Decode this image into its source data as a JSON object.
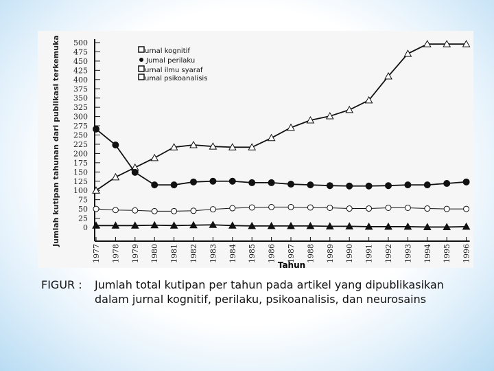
{
  "chart_data": {
    "type": "line",
    "xlabel": "Tahun",
    "ylabel": "Jumlah kutipan tahunan dari publikasi terkemuka",
    "ylim": [
      0,
      500
    ],
    "yticks": [
      0,
      25,
      50,
      75,
      100,
      125,
      150,
      175,
      200,
      225,
      250,
      275,
      300,
      325,
      350,
      375,
      400,
      425,
      450,
      475,
      500
    ],
    "x": [
      1977,
      1978,
      1979,
      1980,
      1981,
      1982,
      1983,
      1984,
      1985,
      1986,
      1987,
      1988,
      1989,
      1990,
      1991,
      1992,
      1993,
      1994,
      1995,
      1996
    ],
    "legend_position": "top-left",
    "series": [
      {
        "name": "Jurnal kognitif",
        "legend_text": "urnal kognitif",
        "marker": "open-triangle",
        "values": [
          100,
          136,
          162,
          188,
          217,
          223,
          219,
          217,
          217,
          242,
          270,
          290,
          301,
          318,
          344,
          409,
          470,
          496,
          496,
          496
        ]
      },
      {
        "name": "Jurnal perilaku",
        "legend_text": "Jumal perilaku",
        "marker": "filled-circle",
        "values": [
          266,
          223,
          149,
          115,
          115,
          123,
          125,
          125,
          121,
          121,
          117,
          115,
          113,
          112,
          112,
          113,
          115,
          115,
          119,
          123
        ]
      },
      {
        "name": "Jurnal ilmu syaraf",
        "legend_text": "urnal ilmu syaraf",
        "marker": "filled-triangle",
        "values": [
          5,
          5,
          5,
          6,
          5,
          6,
          7,
          5,
          4,
          4,
          4,
          4,
          3,
          3,
          2,
          2,
          2,
          1,
          1,
          2
        ]
      },
      {
        "name": "Jurnal psikoanalisis",
        "legend_text": "umal psikoanalisis",
        "marker": "open-circle",
        "values": [
          50,
          47,
          46,
          44,
          44,
          45,
          49,
          52,
          54,
          55,
          55,
          54,
          53,
          51,
          51,
          53,
          53,
          51,
          50,
          50
        ]
      }
    ]
  },
  "caption": {
    "label": "FIGUR :",
    "text": "Jumlah total kutipan per tahun pada artikel yang dipublikasikan dalam jurnal kognitif, perilaku, psikoanalisis, dan neurosains"
  }
}
